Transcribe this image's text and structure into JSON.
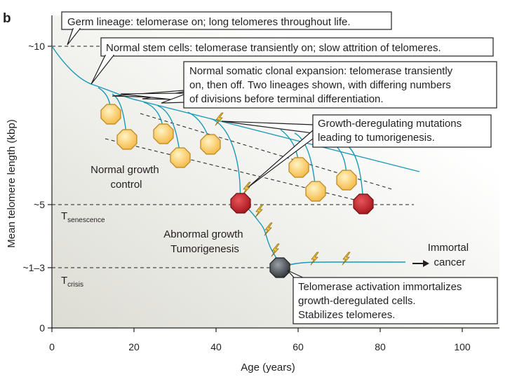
{
  "panel_label": "b",
  "axes": {
    "x_label": "Age (years)",
    "y_label": "Mean telomere length (kbp)",
    "x_ticks": [
      "0",
      "20",
      "40",
      "60",
      "80",
      "100"
    ],
    "y_ticks": [
      "~10",
      "~5",
      "~1–3",
      "0"
    ]
  },
  "thresholds": {
    "senescence": {
      "main": "T",
      "sub": "senescence"
    },
    "crisis": {
      "main": "T",
      "sub": "crisis"
    }
  },
  "region_labels": {
    "normal_growth": [
      "Normal growth",
      "control"
    ],
    "abnormal_growth": [
      "Abnormal growth",
      "Tumorigenesis"
    ]
  },
  "end_label": [
    "Immortal",
    "cancer"
  ],
  "callouts": {
    "germ": [
      "Germ lineage: telomerase on; long telomeres throughout life."
    ],
    "stem": [
      "Normal stem cells: telomerase transiently on; slow attrition of telomeres."
    ],
    "somatic": [
      "Normal somatic clonal expansion: telomerase transiently",
      "on, then off. Two lineages shown, with differing numbers",
      "of divisions before terminal differentiation."
    ],
    "mutations": [
      "Growth-deregulating mutations",
      "leading to tumorigenesis."
    ],
    "telomerase": [
      "Telomerase activation immortalizes",
      "growth-deregulated cells.",
      "Stabilizes telomeres."
    ]
  },
  "colors": {
    "curve": "#1b9ab5",
    "cell_normal_fill": "#fbc86a",
    "cell_normal_stroke": "#b8861f",
    "cell_senescent_fill": "#c21f26",
    "cell_senescent_stroke": "#6e1014",
    "cell_crisis_fill": "#4a4f54",
    "bolt_fill": "#f5c842",
    "bolt_stroke": "#8a6a10",
    "plot_gradient_start": "#dcdcd4",
    "plot_gradient_end": "#ffffff"
  }
}
